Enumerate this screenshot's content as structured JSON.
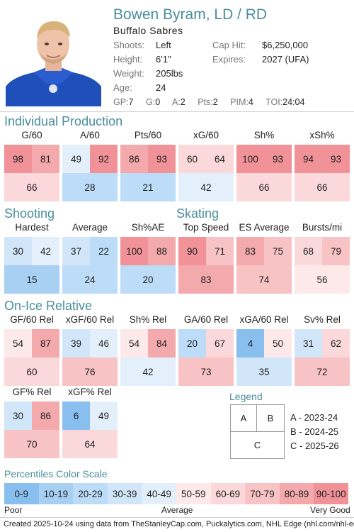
{
  "player": {
    "name": "Bowen Byram, LD / RD",
    "team": "Buffalo Sabres"
  },
  "info": {
    "shoots_label": "Shoots:",
    "shoots": "Left",
    "height_label": "Height:",
    "height": "6'1\"",
    "weight_label": "Weight:",
    "weight": "205lbs",
    "age_label": "Age:",
    "age": "24",
    "cap_label": "Cap Hit:",
    "cap": "$6,250,000",
    "expires_label": "Expires:",
    "expires": "2027 (UFA)"
  },
  "stats": {
    "gp_label": "GP:",
    "gp": "7",
    "g_label": "G:",
    "g": "0",
    "a_label": "A:",
    "a": "2",
    "pts_label": "Pts:",
    "pts": "2",
    "pim_label": "PIM:",
    "pim": "4",
    "toi_label": "TOI:",
    "toi": "24:04"
  },
  "sections": {
    "production": "Individual Production",
    "shooting": "Shooting",
    "skating": "Skating",
    "onice": "On-Ice Relative"
  },
  "metrics": [
    {
      "label": "G/60",
      "v": [
        98,
        81,
        66
      ]
    },
    {
      "label": "A/60",
      "v": [
        49,
        92,
        28
      ]
    },
    {
      "label": "Pts/60",
      "v": [
        86,
        93,
        21
      ]
    },
    {
      "label": "xG/60",
      "v": [
        60,
        64,
        42
      ]
    },
    {
      "label": "Sh%",
      "v": [
        100,
        93,
        66
      ]
    },
    {
      "label": "xSh%",
      "v": [
        94,
        93,
        66
      ]
    },
    {
      "label": "Hardest",
      "v": [
        30,
        42,
        15
      ]
    },
    {
      "label": "Average",
      "v": [
        37,
        22,
        24
      ]
    },
    {
      "label": "Sh%AE",
      "v": [
        100,
        88,
        20
      ]
    },
    {
      "label": "Top Speed",
      "v": [
        90,
        71,
        83
      ]
    },
    {
      "label": "ES Average",
      "v": [
        83,
        75,
        74
      ]
    },
    {
      "label": "Bursts/mi",
      "v": [
        68,
        79,
        56
      ]
    },
    {
      "label": "GF/60 Rel",
      "v": [
        54,
        87,
        60
      ]
    },
    {
      "label": "xGF/60 Rel",
      "v": [
        39,
        46,
        76
      ]
    },
    {
      "label": "Sh% Rel",
      "v": [
        54,
        84,
        42
      ]
    },
    {
      "label": "GA/60 Rel",
      "v": [
        20,
        67,
        73
      ]
    },
    {
      "label": "xGA/60 Rel",
      "v": [
        4,
        50,
        35
      ]
    },
    {
      "label": "Sv% Rel",
      "v": [
        31,
        62,
        72
      ]
    },
    {
      "label": "GF% Rel",
      "v": [
        30,
        86,
        70
      ]
    },
    {
      "label": "xGF% Rel",
      "v": [
        6,
        49,
        64
      ]
    }
  ],
  "legend": {
    "title": "Legend",
    "a": "A",
    "b": "B",
    "c": "C",
    "line_a": "A - 2023-24",
    "line_b": "B - 2024-25",
    "line_c": "C - 2025-26"
  },
  "scale": {
    "title": "Percentiles Color Scale",
    "bins": [
      "0-9",
      "10-19",
      "20-29",
      "30-39",
      "40-49",
      "50-59",
      "60-69",
      "70-79",
      "80-89",
      "90-100"
    ],
    "colors": [
      "#89bfee",
      "#a7d0f3",
      "#bcdcf7",
      "#d1e7f9",
      "#e3f0fb",
      "#fde9ea",
      "#fbd8d9",
      "#f8c3c5",
      "#f4a9ac",
      "#f09298"
    ],
    "poor": "Poor",
    "average": "Average",
    "very_good": "Very Good"
  },
  "footer": "Created 2025-10-24 using data from TheStanleyCap.com, Puckalytics.com, NHL Edge (nhl.com/nhl-edge)."
}
